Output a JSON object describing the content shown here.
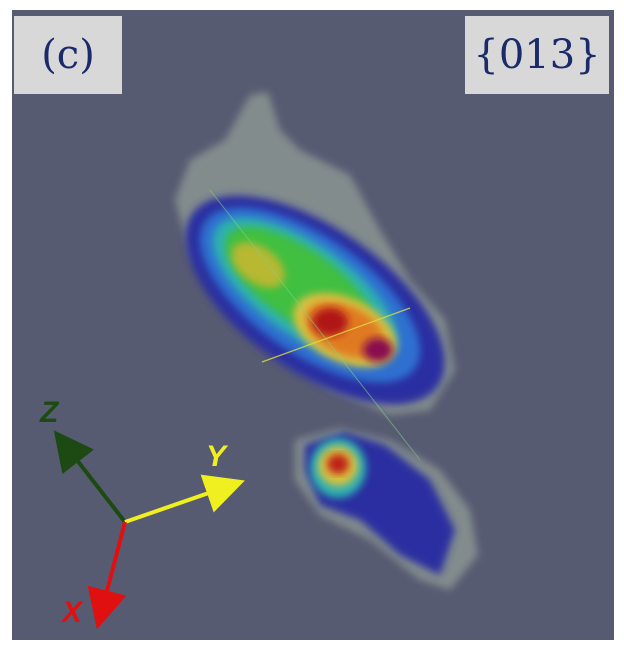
{
  "panel": {
    "label": "(c)",
    "plane": "{013}"
  },
  "axes": {
    "z": "Z",
    "y": "Y",
    "x": "X"
  }
}
